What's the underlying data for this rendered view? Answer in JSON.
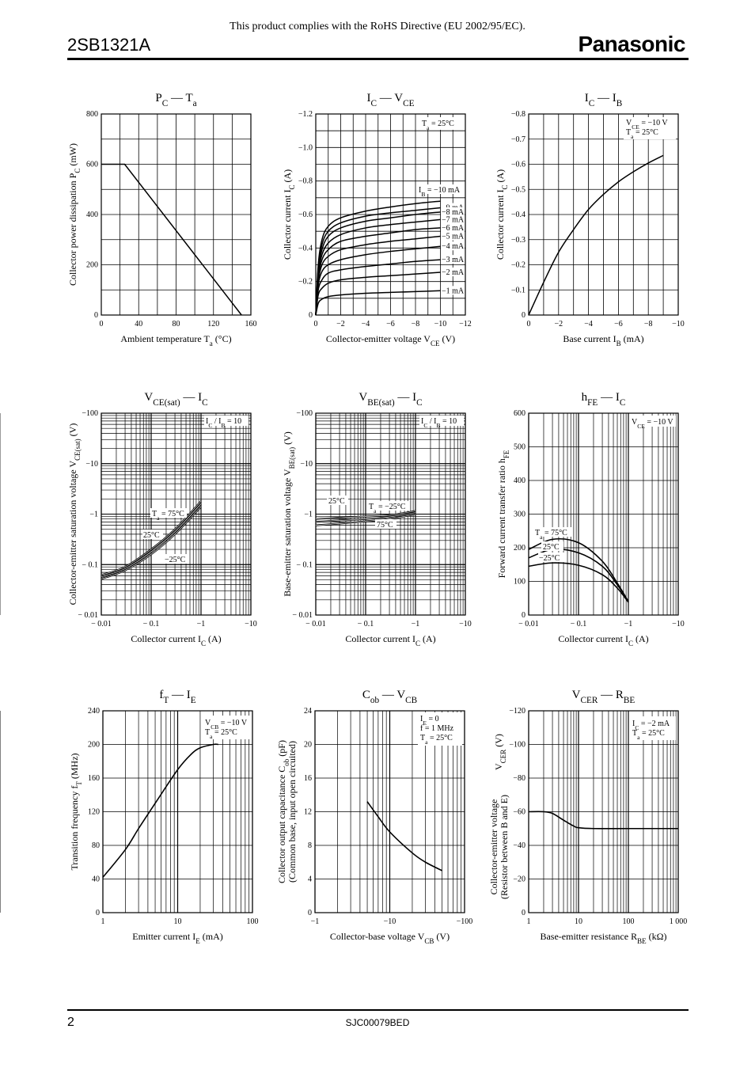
{
  "header": {
    "note": "This product complies with the RoHS Directive (EU 2002/95/EC).",
    "part_number": "2SB1321A",
    "brand": "Panasonic"
  },
  "footer": {
    "page_number": "2",
    "doc_code": "SJC00079BED"
  },
  "charts": {
    "pc_ta": {
      "title": "P",
      "title_sub": "C",
      "title_dash": " — T",
      "title_sub2": "a",
      "xlabel": "Ambient temperature  T",
      "xlabel_sub": "a",
      "xlabel_unit": "  (°C)",
      "ylabel": "Collector power dissipation  P",
      "ylabel_sub": "C",
      "ylabel_unit": "  (mW)",
      "xticks": [
        "0",
        "40",
        "80",
        "120",
        "160"
      ],
      "yticks": [
        "0",
        "200",
        "400",
        "600",
        "800"
      ]
    },
    "ic_vce": {
      "title": "I",
      "title_sub": "C",
      "title_dash": " — V",
      "title_sub2": "CE",
      "xlabel": "Collector-emitter voltage  V",
      "xlabel_sub": "CE",
      "xlabel_unit": "  (V)",
      "ylabel": "Collector current  I",
      "ylabel_sub": "C",
      "ylabel_unit": "  (A)",
      "xticks": [
        "0",
        "−2",
        "−4",
        "−6",
        "−8",
        "−10",
        "−12"
      ],
      "yticks": [
        "0",
        "−0.2",
        "−0.4",
        "−0.6",
        "−0.8",
        "−1.0",
        "−1.2"
      ],
      "cond1": "T",
      "cond1_sub": "a",
      "cond1_rest": " = 25°C",
      "ib_main": "I",
      "ib_main_sub": "B",
      "ib_main_rest": " = −10 mA",
      "curve_labels": [
        "−9 mA",
        "−8 mA",
        "−7 mA",
        "−6 mA",
        "−5 mA",
        "−4 mA",
        "−3 mA",
        "−2 mA",
        "−1 mA"
      ]
    },
    "ic_ib": {
      "title": "I",
      "title_sub": "C",
      "title_dash": " — I",
      "title_sub2": "B",
      "xlabel": "Base current  I",
      "xlabel_sub": "B",
      "xlabel_unit": "  (mA)",
      "ylabel": "Collector current  I",
      "ylabel_sub": "C",
      "ylabel_unit": "  (A)",
      "xticks": [
        "0",
        "−2",
        "−4",
        "−6",
        "−8",
        "−10"
      ],
      "yticks": [
        "0",
        "−0.1",
        "−0.2",
        "−0.3",
        "−0.4",
        "−0.5",
        "−0.6",
        "−0.7",
        "−0.8"
      ],
      "cond1": "V",
      "cond1_sub": "CE",
      "cond1_rest": " = −10 V",
      "cond2": "T",
      "cond2_sub": "a",
      "cond2_rest": " = 25°C"
    },
    "vcesat_ic": {
      "title": "V",
      "title_sub": "CE(sat)",
      "title_dash": " — I",
      "title_sub2": "C",
      "xlabel": "Collector current  I",
      "xlabel_sub": "C",
      "xlabel_unit": "  (A)",
      "ylabel": "Collector-emitter saturation voltage  V",
      "ylabel_sub": "CE(sat)",
      "ylabel_unit": "  (V)",
      "xticks": [
        "− 0.01",
        "− 0.1",
        "−1",
        "−10"
      ],
      "yticks": [
        "− 0.01",
        "− 0.1",
        "−1",
        "−10",
        "−100"
      ],
      "cond1": "I",
      "cond1_sub": "C",
      "cond1_rest": " / I",
      "cond1_sub2": "B",
      "cond1_rest2": " = 10",
      "lbl_75": "T",
      "lbl_75_sub": "a",
      "lbl_75_rest": " = 75°C",
      "lbl_25": "25°C",
      "lbl_m25": "−25°C"
    },
    "vbesat_ic": {
      "title": "V",
      "title_sub": "BE(sat)",
      "title_dash": " — I",
      "title_sub2": "C",
      "xlabel": "Collector current  I",
      "xlabel_sub": "C",
      "xlabel_unit": "  (A)",
      "ylabel": "Base-emitter saturation voltage  V",
      "ylabel_sub": "BE(sat)",
      "ylabel_unit": "  (V)",
      "xticks": [
        "− 0.01",
        "− 0.1",
        "−1",
        "−10"
      ],
      "yticks": [
        "− 0.01",
        "− 0.1",
        "−1",
        "−10",
        "−100"
      ],
      "cond1": "I",
      "cond1_sub": "C",
      "cond1_rest": " / I",
      "cond1_sub2": "B",
      "cond1_rest2": " = 10",
      "lbl_25": "25°C",
      "lbl_m25": "T",
      "lbl_m25_sub": "a",
      "lbl_m25_rest": " = −25°C",
      "lbl_75": "75°C"
    },
    "hfe_ic": {
      "title": "h",
      "title_sub": "FE",
      "title_dash": " — I",
      "title_sub2": "C",
      "xlabel": "Collector current  I",
      "xlabel_sub": "C",
      "xlabel_unit": "  (A)",
      "ylabel": "Forward current transfer ratio  h",
      "ylabel_sub": "FE",
      "ylabel_unit": "",
      "xticks": [
        "− 0.01",
        "− 0.1",
        "−1",
        "−10"
      ],
      "yticks": [
        "0",
        "100",
        "200",
        "300",
        "400",
        "500",
        "600"
      ],
      "cond1": "V",
      "cond1_sub": "CE",
      "cond1_rest": " = −10 V",
      "lbl_75": "T",
      "lbl_75_sub": "a",
      "lbl_75_rest": " = 75°C",
      "lbl_25": "25°C",
      "lbl_m25": "−25°C"
    },
    "ft_ie": {
      "title": "f",
      "title_sub": "T",
      "title_dash": " — I",
      "title_sub2": "E",
      "xlabel": "Emitter current  I",
      "xlabel_sub": "E",
      "xlabel_unit": "  (mA)",
      "ylabel": "Transition frequency  f",
      "ylabel_sub": "T",
      "ylabel_unit": "  (MHz)",
      "xticks": [
        "1",
        "10",
        "100"
      ],
      "yticks": [
        "0",
        "40",
        "80",
        "120",
        "160",
        "200",
        "240"
      ],
      "cond1": "V",
      "cond1_sub": "CB",
      "cond1_rest": " = −10 V",
      "cond2": "T",
      "cond2_sub": "a",
      "cond2_rest": " = 25°C"
    },
    "cob_vcb": {
      "title": "C",
      "title_sub": "ob",
      "title_dash": " — V",
      "title_sub2": "CB",
      "xlabel": "Collector-base voltage  V",
      "xlabel_sub": "CB",
      "xlabel_unit": "  (V)",
      "ylabel": "Collector output capacitance  C",
      "ylabel_sub": "ob",
      "ylabel_unit": "  (pF)",
      "ylabel2": "(Common base, input open circuited)",
      "xticks": [
        "−1",
        "−10",
        "−100"
      ],
      "yticks": [
        "0",
        "4",
        "8",
        "12",
        "16",
        "20",
        "24"
      ],
      "cond1": "I",
      "cond1_sub": "E",
      "cond1_rest": " = 0",
      "cond2": "f = 1 MHz",
      "cond3": "T",
      "cond3_sub": "a",
      "cond3_rest": " = 25°C"
    },
    "vcer_rbe": {
      "title": "V",
      "title_sub": "CER",
      "title_dash": " — R",
      "title_sub2": "BE",
      "xlabel": "Base-emitter resistance  R",
      "xlabel_sub": "BE",
      "xlabel_unit": "  (kΩ)",
      "ylabel": "Collector-emitter voltage",
      "ylabel2": "(Resistor between B and E)",
      "ylabel3": "V",
      "ylabel3_sub": "CER",
      "ylabel3_unit": "  (V)",
      "xticks": [
        "1",
        "10",
        "100",
        "1 000"
      ],
      "yticks": [
        "0",
        "−20",
        "−40",
        "−60",
        "−80",
        "−100",
        "−120"
      ],
      "cond1": "I",
      "cond1_sub": "C",
      "cond1_rest": " = −2 mA",
      "cond2": "T",
      "cond2_sub": "a",
      "cond2_rest": " = 25°C"
    }
  },
  "chart_data": [
    {
      "type": "line",
      "id": "pc_ta",
      "xlim": [
        0,
        160
      ],
      "ylim": [
        0,
        800
      ],
      "grid": true,
      "series": [
        {
          "x": [
            0,
            25,
            150
          ],
          "y": [
            600,
            600,
            0
          ]
        }
      ]
    },
    {
      "type": "line",
      "id": "ic_vce",
      "xlim": [
        0,
        -12
      ],
      "ylim": [
        0,
        -1.2
      ],
      "grid": true,
      "series": [
        {
          "name": "−10 mA",
          "x": [
            0,
            -0.2,
            -0.5,
            -1,
            -2,
            -4,
            -6,
            -8,
            -10
          ],
          "y": [
            0,
            -0.3,
            -0.45,
            -0.53,
            -0.58,
            -0.62,
            -0.645,
            -0.665,
            -0.68
          ]
        },
        {
          "name": "−9 mA",
          "x": [
            0,
            -0.2,
            -0.5,
            -1,
            -2,
            -4,
            -6,
            -8,
            -10
          ],
          "y": [
            0,
            -0.28,
            -0.42,
            -0.5,
            -0.55,
            -0.59,
            -0.61,
            -0.625,
            -0.64
          ]
        },
        {
          "name": "−8 mA",
          "x": [
            0,
            -0.2,
            -0.5,
            -1,
            -2,
            -4,
            -6,
            -8,
            -10
          ],
          "y": [
            0,
            -0.26,
            -0.39,
            -0.47,
            -0.52,
            -0.56,
            -0.58,
            -0.6,
            -0.615
          ]
        },
        {
          "name": "−7 mA",
          "x": [
            0,
            -0.2,
            -0.5,
            -1,
            -2,
            -4,
            -6,
            -8,
            -10
          ],
          "y": [
            0,
            -0.24,
            -0.36,
            -0.43,
            -0.48,
            -0.52,
            -0.54,
            -0.555,
            -0.57
          ]
        },
        {
          "name": "−6 mA",
          "x": [
            0,
            -0.2,
            -0.5,
            -1,
            -2,
            -4,
            -6,
            -8,
            -10
          ],
          "y": [
            0,
            -0.22,
            -0.33,
            -0.39,
            -0.44,
            -0.47,
            -0.49,
            -0.51,
            -0.52
          ]
        },
        {
          "name": "−5 mA",
          "x": [
            0,
            -0.2,
            -0.5,
            -1,
            -2,
            -4,
            -6,
            -8,
            -10
          ],
          "y": [
            0,
            -0.2,
            -0.3,
            -0.35,
            -0.39,
            -0.42,
            -0.44,
            -0.455,
            -0.47
          ]
        },
        {
          "name": "−4 mA",
          "x": [
            0,
            -0.2,
            -0.5,
            -1,
            -2,
            -4,
            -6,
            -8,
            -10
          ],
          "y": [
            0,
            -0.18,
            -0.26,
            -0.3,
            -0.33,
            -0.36,
            -0.38,
            -0.395,
            -0.41
          ]
        },
        {
          "name": "−3 mA",
          "x": [
            0,
            -0.2,
            -0.5,
            -1,
            -2,
            -4,
            -6,
            -8,
            -10
          ],
          "y": [
            0,
            -0.15,
            -0.21,
            -0.25,
            -0.27,
            -0.29,
            -0.305,
            -0.32,
            -0.33
          ]
        },
        {
          "name": "−2 mA",
          "x": [
            0,
            -0.2,
            -0.5,
            -1,
            -2,
            -4,
            -6,
            -8,
            -10
          ],
          "y": [
            0,
            -0.12,
            -0.16,
            -0.19,
            -0.21,
            -0.225,
            -0.235,
            -0.245,
            -0.255
          ]
        },
        {
          "name": "−1 mA",
          "x": [
            0,
            -0.2,
            -0.5,
            -1,
            -2,
            -4,
            -6,
            -8,
            -10
          ],
          "y": [
            0,
            -0.07,
            -0.095,
            -0.11,
            -0.12,
            -0.13,
            -0.135,
            -0.14,
            -0.145
          ]
        }
      ]
    },
    {
      "type": "line",
      "id": "ic_ib",
      "xlim": [
        0,
        -10
      ],
      "ylim": [
        0,
        -0.8
      ],
      "grid": true,
      "series": [
        {
          "x": [
            0,
            -1,
            -2,
            -3,
            -4,
            -5,
            -6,
            -7,
            -8,
            -9
          ],
          "y": [
            0,
            -0.13,
            -0.25,
            -0.34,
            -0.42,
            -0.48,
            -0.53,
            -0.57,
            -0.605,
            -0.635
          ]
        }
      ]
    },
    {
      "type": "line",
      "id": "vcesat_ic",
      "xscale": "log",
      "yscale": "log",
      "xlim": [
        -0.01,
        -10
      ],
      "ylim": [
        -0.01,
        -100
      ],
      "grid": true,
      "series": [
        {
          "name": "75°C",
          "x": [
            -0.01,
            -0.03,
            -0.1,
            -0.3,
            -1
          ],
          "y": [
            -0.062,
            -0.09,
            -0.2,
            -0.5,
            -1.8
          ]
        },
        {
          "name": "25°C",
          "x": [
            -0.01,
            -0.03,
            -0.1,
            -0.3,
            -1
          ],
          "y": [
            -0.057,
            -0.083,
            -0.18,
            -0.45,
            -1.6
          ]
        },
        {
          "name": "−25°C",
          "x": [
            -0.01,
            -0.03,
            -0.1,
            -0.3,
            -1
          ],
          "y": [
            -0.052,
            -0.077,
            -0.16,
            -0.4,
            -1.4
          ]
        }
      ]
    },
    {
      "type": "line",
      "id": "vbesat_ic",
      "xscale": "log",
      "yscale": "log",
      "xlim": [
        -0.01,
        -10
      ],
      "ylim": [
        -0.01,
        -100
      ],
      "grid": true,
      "series": [
        {
          "name": "−25°C",
          "x": [
            -0.01,
            -0.03,
            -0.1,
            -0.3,
            -1
          ],
          "y": [
            -0.8,
            -0.85,
            -0.9,
            -0.95,
            -1.15
          ]
        },
        {
          "name": "25°C",
          "x": [
            -0.01,
            -0.03,
            -0.1,
            -0.3,
            -1
          ],
          "y": [
            -0.7,
            -0.75,
            -0.8,
            -0.88,
            -1.07
          ]
        },
        {
          "name": "75°C",
          "x": [
            -0.01,
            -0.03,
            -0.1,
            -0.3,
            -1
          ],
          "y": [
            -0.6,
            -0.65,
            -0.72,
            -0.8,
            -1.0
          ]
        }
      ]
    },
    {
      "type": "line",
      "id": "hfe_ic",
      "xscale": "log",
      "xlim": [
        -0.01,
        -10
      ],
      "ylim": [
        0,
        600
      ],
      "grid": true,
      "series": [
        {
          "name": "75°C",
          "x": [
            -0.01,
            -0.03,
            -0.1,
            -0.3,
            -0.6,
            -1
          ],
          "y": [
            195,
            225,
            215,
            160,
            95,
            40
          ]
        },
        {
          "name": "25°C",
          "x": [
            -0.01,
            -0.03,
            -0.1,
            -0.3,
            -0.6,
            -1
          ],
          "y": [
            170,
            195,
            185,
            145,
            90,
            40
          ]
        },
        {
          "name": "−25°C",
          "x": [
            -0.01,
            -0.03,
            -0.1,
            -0.3,
            -0.6,
            -1
          ],
          "y": [
            145,
            155,
            148,
            120,
            80,
            38
          ]
        }
      ]
    },
    {
      "type": "line",
      "id": "ft_ie",
      "xscale": "log",
      "xlim": [
        1,
        100
      ],
      "ylim": [
        0,
        240
      ],
      "grid": true,
      "series": [
        {
          "x": [
            1,
            2,
            3,
            5,
            10,
            15,
            20,
            30,
            35
          ],
          "y": [
            42,
            75,
            100,
            130,
            170,
            188,
            196,
            200,
            200
          ]
        }
      ]
    },
    {
      "type": "line",
      "id": "cob_vcb",
      "xscale": "log",
      "xlim": [
        -1,
        -100
      ],
      "ylim": [
        0,
        24
      ],
      "grid": true,
      "series": [
        {
          "x": [
            -5,
            -7,
            -10,
            -20,
            -30,
            -50
          ],
          "y": [
            13.2,
            11.4,
            9.6,
            7.1,
            6.0,
            5.0
          ]
        }
      ]
    },
    {
      "type": "line",
      "id": "vcer_rbe",
      "xscale": "log",
      "xlim": [
        1,
        1000
      ],
      "ylim": [
        0,
        -120
      ],
      "grid": true,
      "series": [
        {
          "x": [
            1,
            2,
            3,
            5,
            8,
            10,
            20,
            100,
            1000
          ],
          "y": [
            -60,
            -60,
            -59,
            -55,
            -51.5,
            -50.5,
            -50,
            -50,
            -50
          ]
        }
      ]
    }
  ]
}
